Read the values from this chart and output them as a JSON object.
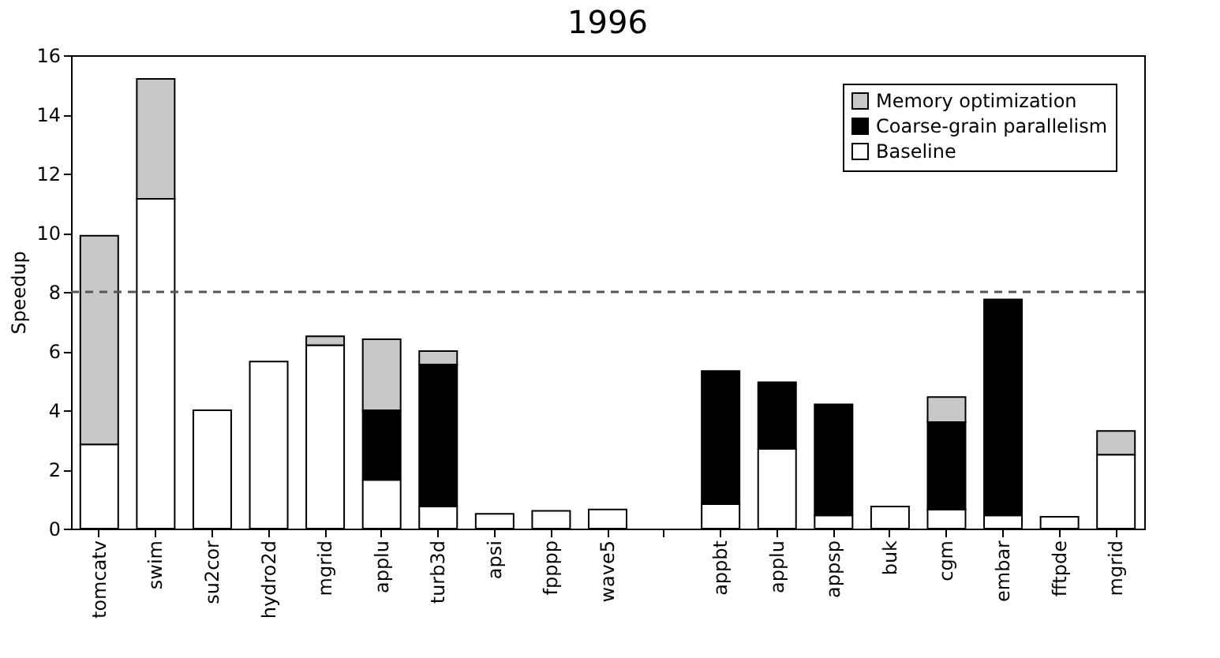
{
  "chart_data": {
    "type": "bar",
    "title": "1996",
    "ylabel": "Speedup",
    "stacked": true,
    "categories": [
      "tomcatv",
      "swim",
      "su2cor",
      "hydro2d",
      "mgrid",
      "applu",
      "turb3d",
      "apsi",
      "fpppp",
      "wave5",
      null,
      "appbt",
      "applu",
      "appsp",
      "buk",
      "cgm",
      "embar",
      "fftpde",
      "mgrid"
    ],
    "series": [
      {
        "name": "Baseline",
        "color": "#ffffff",
        "values": [
          2.85,
          11.15,
          4.0,
          5.65,
          6.2,
          1.65,
          0.75,
          0.5,
          0.6,
          0.65,
          null,
          0.83,
          2.7,
          0.45,
          0.75,
          0.65,
          0.45,
          0.4,
          2.5
        ]
      },
      {
        "name": "Coarse-grain parallelism",
        "color": "#000000",
        "values": [
          null,
          null,
          null,
          null,
          null,
          2.35,
          4.8,
          null,
          null,
          null,
          null,
          4.5,
          2.25,
          3.75,
          null,
          2.95,
          7.3,
          null,
          null
        ]
      },
      {
        "name": "Memory optimization",
        "color": "#c8c8c8",
        "values": [
          7.05,
          4.05,
          null,
          null,
          0.3,
          2.4,
          0.45,
          null,
          null,
          null,
          null,
          null,
          null,
          null,
          null,
          0.85,
          null,
          null,
          0.8
        ]
      }
    ],
    "ylim": [
      0,
      16
    ],
    "yticks": [
      0,
      2,
      4,
      6,
      8,
      10,
      12,
      14,
      16
    ],
    "ref_lines": [
      {
        "axis": "y",
        "value": 8,
        "line_style": "dashed",
        "color": "#555555"
      }
    ],
    "grid": false,
    "legend": "top right"
  }
}
